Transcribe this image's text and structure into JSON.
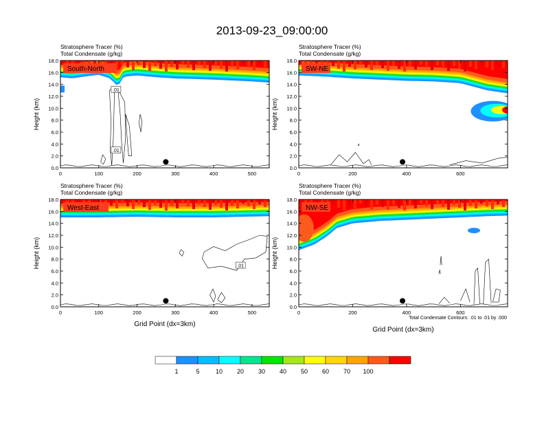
{
  "title": "2013-09-23_09:00:00",
  "colors": {
    "levels": [
      "#ffffff",
      "#1e90ff",
      "#00bfff",
      "#00ffff",
      "#00e68c",
      "#00e600",
      "#a6e61f",
      "#ffff00",
      "#ffd700",
      "#ffa500",
      "#ff5a1e",
      "#ff0000"
    ],
    "contour": "#000000",
    "panel_label_bg": "#ff3c1e"
  },
  "colorbar": {
    "tick_labels": [
      "1",
      "5",
      "10",
      "20",
      "30",
      "40",
      "50",
      "60",
      "70",
      "100"
    ]
  },
  "contour_note": "Total Condensate Contours: .01 to .01 by .000",
  "chart_data": [
    {
      "type": "heatmap",
      "panel": "South-North",
      "subtitle_line1": "Stratosphere Tracer   (%)",
      "subtitle_line2": "Total Condensate   (g/kg)",
      "xlabel": "",
      "ylabel": "Height (km)",
      "xlim": [
        0,
        545
      ],
      "ylim": [
        0,
        18
      ],
      "xticks": [
        0,
        100,
        200,
        300,
        400,
        500
      ],
      "yticks": [
        0,
        2,
        4,
        6,
        8,
        10,
        12,
        14,
        16,
        18
      ],
      "ytick_labels": [
        "0.0",
        "2.0",
        "4.0",
        "6.0",
        "8.0",
        "10.0",
        "12.0",
        "14.0",
        "16.0",
        "18.0"
      ],
      "marker": {
        "x": 275,
        "y": 1.0
      },
      "contour_labels": [
        {
          "text": ".01",
          "x": 145,
          "y": 13.0
        },
        {
          "text": ".01",
          "x": 145,
          "y": 2.8
        }
      ],
      "tracer_front_km": [
        [
          0,
          15.2
        ],
        [
          30,
          15.0
        ],
        [
          60,
          15.3
        ],
        [
          100,
          15.6
        ],
        [
          130,
          15.0
        ],
        [
          150,
          13.6
        ],
        [
          165,
          15.3
        ],
        [
          200,
          15.5
        ],
        [
          250,
          15.2
        ],
        [
          300,
          15.0
        ],
        [
          400,
          14.8
        ],
        [
          500,
          14.5
        ],
        [
          545,
          14.3
        ]
      ]
    },
    {
      "type": "heatmap",
      "panel": "SW-NE",
      "subtitle_line1": "Stratosphere Tracer   (%)",
      "subtitle_line2": "Total Condensate   (g/kg)",
      "xlabel": "",
      "ylabel": "Height (km)",
      "xlim": [
        0,
        775
      ],
      "ylim": [
        0,
        18
      ],
      "xticks": [
        0,
        200,
        400,
        600
      ],
      "yticks": [
        0,
        2,
        4,
        6,
        8,
        10,
        12,
        14,
        16,
        18
      ],
      "ytick_labels": [
        "0.0",
        "2.0",
        "4.0",
        "6.0",
        "8.0",
        "10.0",
        "12.0",
        "14.0",
        "16.0",
        "18.0"
      ],
      "marker": {
        "x": 385,
        "y": 1.0
      },
      "contour_labels": [],
      "tracer_front_km": [
        [
          0,
          15.5
        ],
        [
          100,
          15.3
        ],
        [
          200,
          15.0
        ],
        [
          300,
          14.8
        ],
        [
          400,
          14.6
        ],
        [
          500,
          14.5
        ],
        [
          600,
          14.2
        ],
        [
          650,
          13.6
        ],
        [
          700,
          13.0
        ],
        [
          775,
          12.5
        ]
      ]
    },
    {
      "type": "heatmap",
      "panel": "West-East",
      "subtitle_line1": "Stratosphere Tracer   (%)",
      "subtitle_line2": "Total Condensate   (g/kg)",
      "xlabel": "Grid Point (dx=3km)",
      "ylabel": "Height (km)",
      "xlim": [
        0,
        545
      ],
      "ylim": [
        0,
        18
      ],
      "xticks": [
        0,
        100,
        200,
        300,
        400,
        500
      ],
      "yticks": [
        0,
        2,
        4,
        6,
        8,
        10,
        12,
        14,
        16,
        18
      ],
      "ytick_labels": [
        "0.0",
        "2.0",
        "4.0",
        "6.0",
        "8.0",
        "10.0",
        "12.0",
        "14.0",
        "16.0",
        "18.0"
      ],
      "marker": {
        "x": 275,
        "y": 1.0
      },
      "contour_labels": [
        {
          "text": ".01",
          "x": 470,
          "y": 6.8
        }
      ],
      "tracer_front_km": [
        [
          0,
          15.0
        ],
        [
          100,
          15.0
        ],
        [
          200,
          15.1
        ],
        [
          300,
          15.0
        ],
        [
          400,
          15.0
        ],
        [
          545,
          15.2
        ]
      ]
    },
    {
      "type": "heatmap",
      "panel": "NW-SE",
      "subtitle_line1": "Stratosphere Tracer   (%)",
      "subtitle_line2": "Total Condensate   (g/kg)",
      "xlabel": "Grid Point (dx=3km)",
      "ylabel": "Height (km)",
      "xlim": [
        0,
        775
      ],
      "ylim": [
        0,
        18
      ],
      "xticks": [
        0,
        200,
        400,
        600
      ],
      "yticks": [
        0,
        2,
        4,
        6,
        8,
        10,
        12,
        14,
        16,
        18
      ],
      "ytick_labels": [
        "0.0",
        "2.0",
        "4.0",
        "6.0",
        "8.0",
        "10.0",
        "12.0",
        "14.0",
        "16.0",
        "18.0"
      ],
      "marker": {
        "x": 385,
        "y": 1.0
      },
      "contour_labels": [],
      "tracer_front_km": [
        [
          0,
          9.5
        ],
        [
          60,
          10.5
        ],
        [
          110,
          12.0
        ],
        [
          140,
          13.2
        ],
        [
          200,
          14.0
        ],
        [
          300,
          14.4
        ],
        [
          400,
          14.6
        ],
        [
          500,
          14.8
        ],
        [
          600,
          15.0
        ],
        [
          700,
          15.2
        ],
        [
          775,
          15.3
        ]
      ]
    }
  ]
}
